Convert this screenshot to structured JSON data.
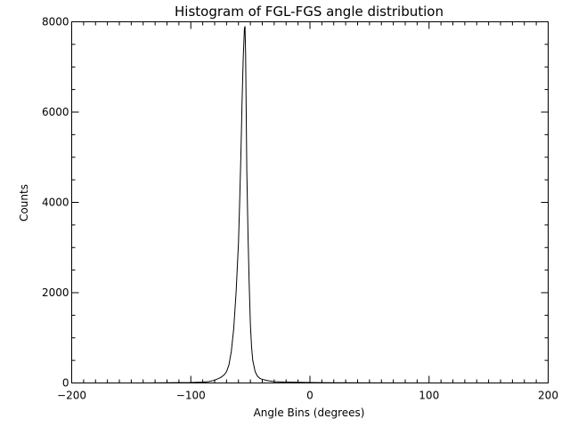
{
  "chart_data": {
    "type": "line",
    "title": "Histogram of FGL-FGS angle distribution",
    "xlabel": "Angle Bins (degrees)",
    "ylabel": "Counts",
    "xlim": [
      -200,
      200
    ],
    "ylim": [
      0,
      8000
    ],
    "x_ticks": [
      -200,
      -100,
      0,
      100,
      200
    ],
    "x_tick_labels": [
      "−200",
      "−100",
      "0",
      "100",
      "200"
    ],
    "y_ticks": [
      0,
      2000,
      4000,
      6000,
      8000
    ],
    "y_tick_labels": [
      "0",
      "2000",
      "4000",
      "6000",
      "8000"
    ],
    "grid": false,
    "series": [
      {
        "name": "counts",
        "x": [
          -140,
          -120,
          -100,
          -90,
          -85,
          -80,
          -75,
          -72,
          -70,
          -68,
          -66,
          -64,
          -62,
          -60,
          -59,
          -58,
          -57,
          -56,
          -55,
          -54.5,
          -54,
          -53.5,
          -53,
          -52,
          -51,
          -50,
          -49,
          -48,
          -46,
          -44,
          -42,
          -40,
          -35,
          -30,
          -20,
          -10,
          0,
          20,
          50,
          100,
          110
        ],
        "y": [
          0,
          5,
          10,
          20,
          30,
          60,
          120,
          180,
          250,
          400,
          700,
          1200,
          2000,
          3100,
          4000,
          5000,
          6200,
          7200,
          7850,
          7900,
          7300,
          6000,
          4700,
          3300,
          2200,
          1300,
          800,
          500,
          250,
          150,
          100,
          80,
          50,
          30,
          20,
          15,
          10,
          5,
          3,
          1,
          0
        ]
      }
    ]
  }
}
